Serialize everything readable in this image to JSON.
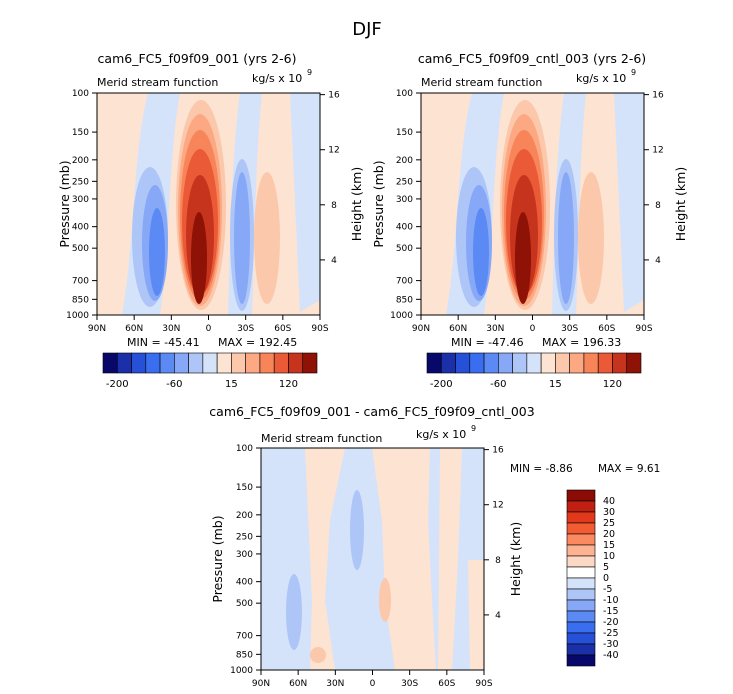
{
  "figure_title": "DJF",
  "chart_data": [
    {
      "type": "heatmap",
      "title": "cam6_FC5_f09f09_001 (yrs 2-6)",
      "subtitle_left": "Merid stream function",
      "units": "kg/s x 10",
      "units_exp": "9",
      "ylabel": "Pressure (mb)",
      "ylabel_right": "Height (km)",
      "x_ticks": [
        "90N",
        "60N",
        "30N",
        "0",
        "30S",
        "60S",
        "90S"
      ],
      "y_ticks": [
        "100",
        "150",
        "200",
        "250",
        "300",
        "400",
        "500",
        "700",
        "850",
        "1000"
      ],
      "y_right_ticks": [
        "16",
        "12",
        "8",
        "4"
      ],
      "min_label": "MIN = -45.41",
      "max_label": "MAX = 192.45",
      "min": -45.41,
      "max": 192.45,
      "colorbar_labels": [
        "-200",
        "-60",
        "15",
        "120"
      ]
    },
    {
      "type": "heatmap",
      "title": "cam6_FC5_f09f09_cntl_003 (yrs 2-6)",
      "subtitle_left": "Merid stream function",
      "units": "kg/s x 10",
      "units_exp": "9",
      "ylabel": "Pressure (mb)",
      "ylabel_right": "Height (km)",
      "x_ticks": [
        "90N",
        "60N",
        "30N",
        "0",
        "30S",
        "60S",
        "90S"
      ],
      "y_ticks": [
        "100",
        "150",
        "200",
        "250",
        "300",
        "400",
        "500",
        "700",
        "850",
        "1000"
      ],
      "y_right_ticks": [
        "16",
        "12",
        "8",
        "4"
      ],
      "min_label": "MIN = -47.46",
      "max_label": "MAX = 196.33",
      "min": -47.46,
      "max": 196.33,
      "colorbar_labels": [
        "-200",
        "-60",
        "15",
        "120"
      ]
    },
    {
      "type": "heatmap",
      "title": "cam6_FC5_f09f09_001 - cam6_FC5_f09f09_cntl_003",
      "subtitle_left": "Merid stream function",
      "units": "kg/s x 10",
      "units_exp": "9",
      "ylabel": "Pressure (mb)",
      "ylabel_right": "Height (km)",
      "x_ticks": [
        "90N",
        "60N",
        "30N",
        "0",
        "30S",
        "60S",
        "90S"
      ],
      "y_ticks": [
        "100",
        "150",
        "200",
        "250",
        "300",
        "400",
        "500",
        "700",
        "850",
        "1000"
      ],
      "y_right_ticks": [
        "16",
        "12",
        "8",
        "4"
      ],
      "min_label": "MIN =   -8.86",
      "max_label": "MAX =   9.61",
      "min": -8.86,
      "max": 9.61,
      "colorbar_labels": [
        "40",
        "30",
        "25",
        "20",
        "15",
        "10",
        "5",
        "0",
        "-5",
        "-10",
        "-15",
        "-20",
        "-25",
        "-30",
        "-40"
      ]
    }
  ],
  "colors": {
    "cb_main": [
      "#08086b",
      "#1a2fa8",
      "#2650d8",
      "#3a6ef0",
      "#5b8af5",
      "#86a8f7",
      "#aec6f7",
      "#d5e3fa",
      "#fde3d2",
      "#fcc8ac",
      "#fba883",
      "#f78559",
      "#ea5a37",
      "#c7341e",
      "#8f1206"
    ],
    "cb_diff": [
      "#8b0b05",
      "#c01f12",
      "#e2391d",
      "#f35b33",
      "#fb8a61",
      "#fdb391",
      "#fdd8c4",
      "#ffffff",
      "#d5e3fa",
      "#aec6f7",
      "#86a8f7",
      "#5b8af5",
      "#3a6ef0",
      "#2650d8",
      "#1a2fa8",
      "#08086b"
    ]
  }
}
